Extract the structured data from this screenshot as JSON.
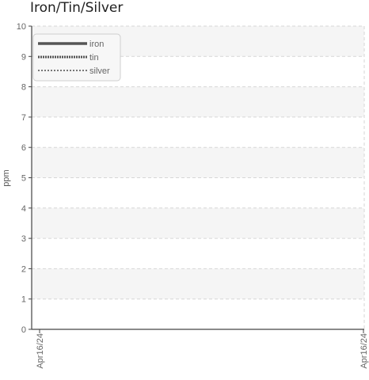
{
  "chart_data": {
    "type": "line",
    "title": "Iron/Tin/Silver",
    "ylabel": "ppm",
    "xlabel": "",
    "ylim": [
      0,
      10
    ],
    "yticks": [
      0,
      1,
      2,
      3,
      4,
      5,
      6,
      7,
      8,
      9,
      10
    ],
    "x_tick_labels": [
      "Apr16/24",
      "Apr16/24"
    ],
    "grid": true,
    "legend_position": "top-left",
    "series": [
      {
        "name": "iron",
        "style": "solid",
        "color": "#555555",
        "values": []
      },
      {
        "name": "tin",
        "style": "dotted",
        "color": "#555555",
        "values": []
      },
      {
        "name": "silver",
        "style": "dashed",
        "color": "#777777",
        "values": []
      }
    ]
  }
}
